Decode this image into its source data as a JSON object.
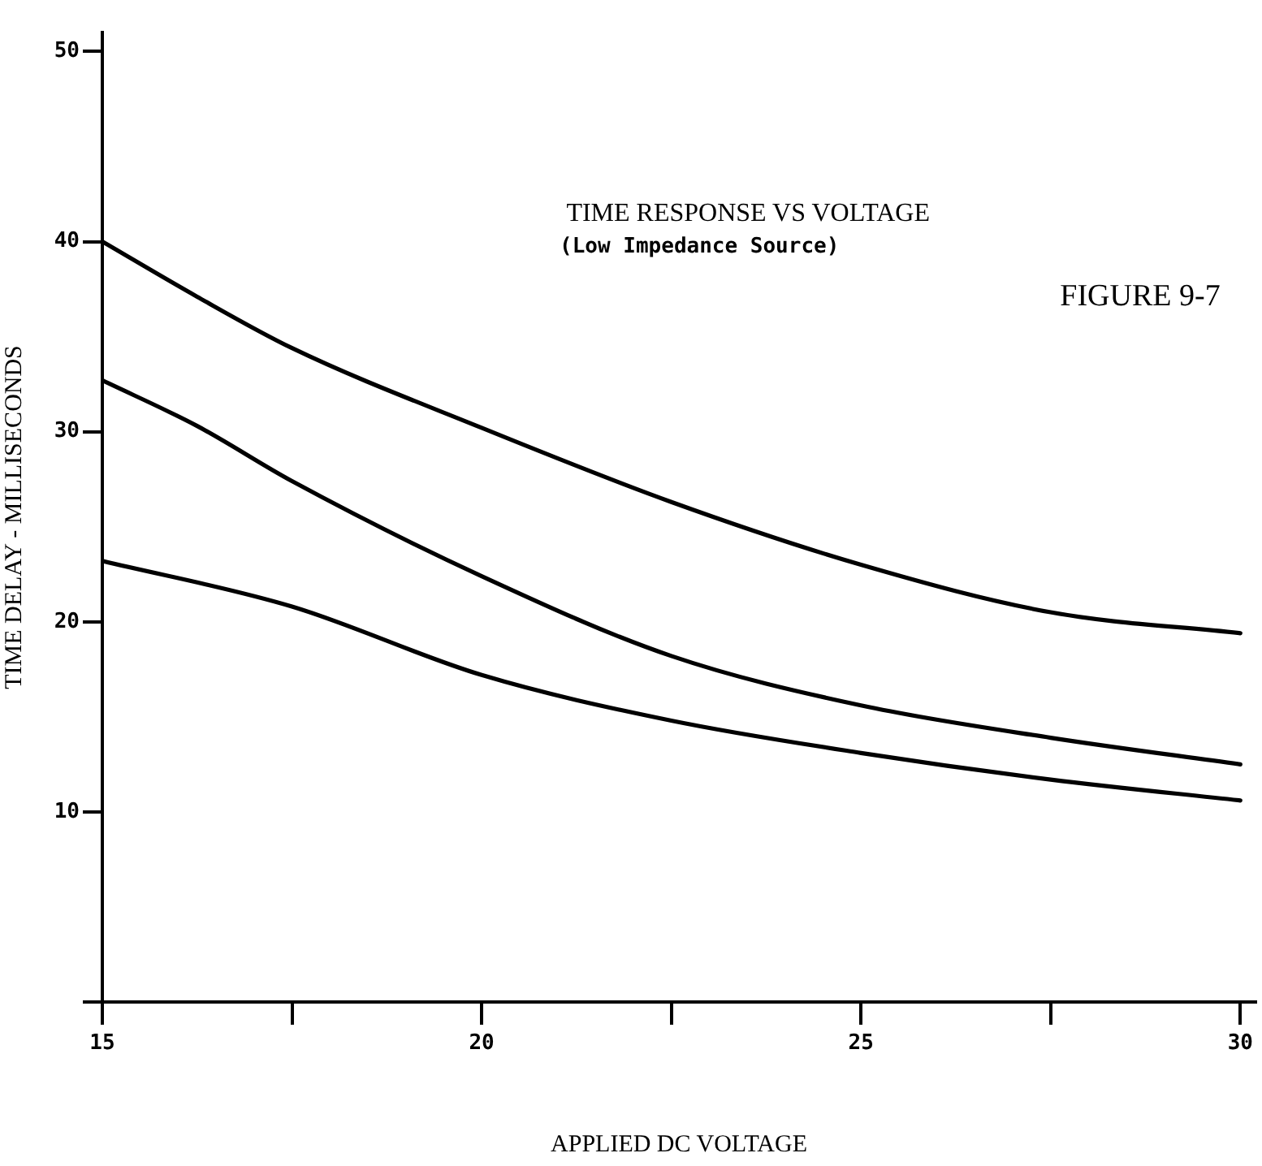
{
  "chart_data": {
    "type": "line",
    "title": "TIME RESPONSE VS VOLTAGE",
    "subtitle": "(Low Impedance Source)",
    "xlabel": "APPLIED DC VOLTAGE",
    "ylabel": "TIME DELAY - MILLISECONDS",
    "annotations": [
      "FIGURE 9-7"
    ],
    "x": [
      15,
      16.25,
      17.5,
      20,
      22.5,
      25,
      27.5,
      30
    ],
    "series": [
      {
        "color": "#000000",
        "values": [
          40,
          37.1,
          34.4,
          30.2,
          26.3,
          23.0,
          20.5,
          19.4
        ]
      },
      {
        "color": "#000000",
        "values": [
          32.7,
          30.3,
          27.4,
          22.4,
          18.2,
          15.6,
          13.9,
          12.5
        ]
      },
      {
        "color": "#000000",
        "x": [
          15,
          17.5,
          20,
          22.5,
          25,
          27.5,
          30
        ],
        "values": [
          23.2,
          20.8,
          17.2,
          14.8,
          13.1,
          11.7,
          10.6
        ]
      }
    ],
    "xlim": [
      15,
      30.2
    ],
    "ylim": [
      0,
      51
    ],
    "xticks": [
      15,
      {
        "value": 17.5,
        "label": null
      },
      20,
      {
        "value": 22.5,
        "label": null
      },
      25,
      {
        "value": 27.5,
        "label": null
      },
      30
    ],
    "yticks": [
      {
        "value": 0,
        "label": null
      },
      10,
      20,
      30,
      40,
      50
    ],
    "grid": false,
    "legend": false,
    "marker": "none",
    "line_style": "solid"
  }
}
